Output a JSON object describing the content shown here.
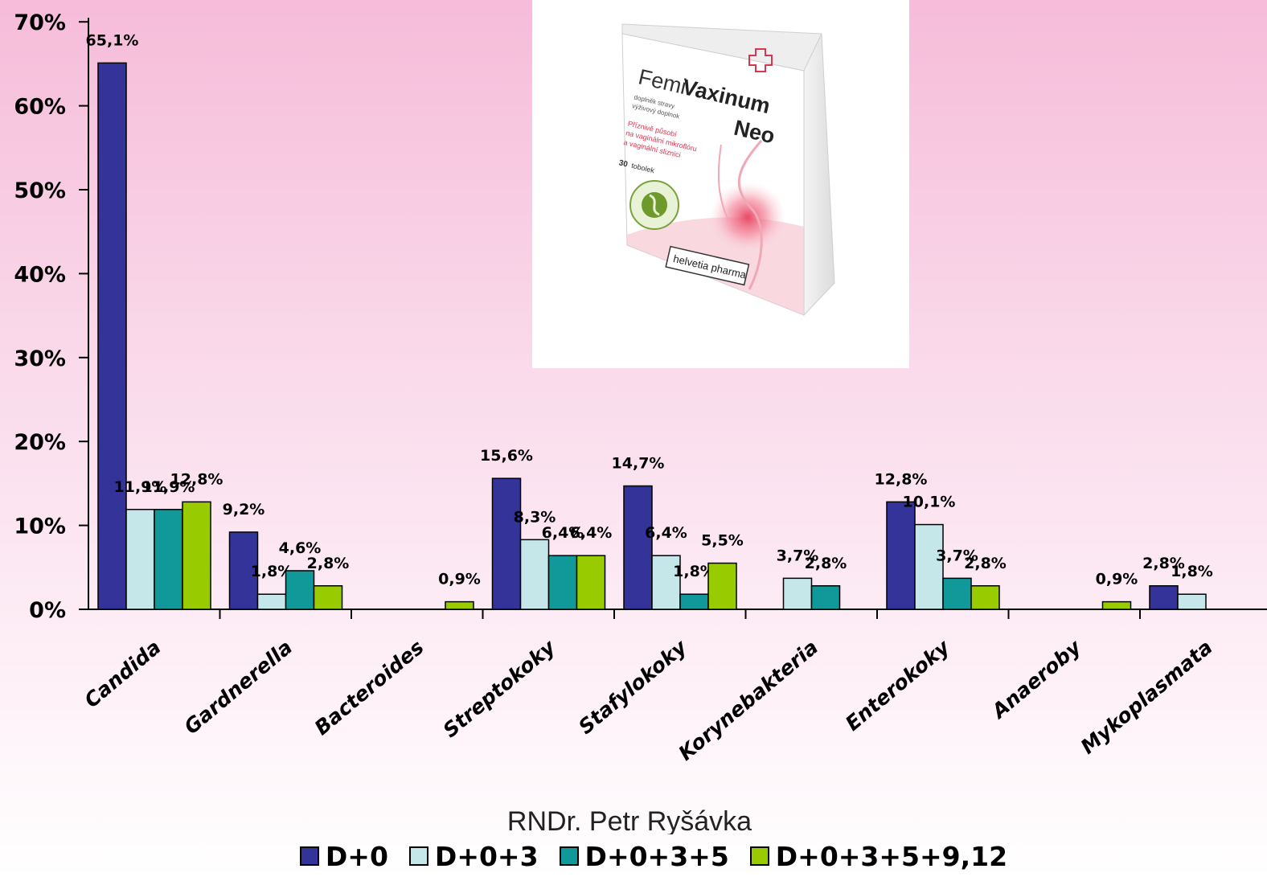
{
  "colors": {
    "series": [
      "#333399",
      "#c6e7ea",
      "#119898",
      "#99cc00"
    ]
  },
  "product_image": {
    "brand_prefix": "Femi",
    "brand_main": "Vaxinum",
    "brand_sub": "Neo",
    "line1": "doplněk stravy",
    "line2": "výživový doplnok",
    "claim1": "Příznivě působí",
    "claim2": "na vaginální mikroflóru",
    "claim3": "a vaginální sliznici",
    "count_number": "30",
    "count_word": "tobolek",
    "manufacturer": "helvetia pharma"
  },
  "credit": "RNDr. Petr Ryšávka",
  "chart_data": {
    "type": "bar",
    "categories": [
      "Candida",
      "Gardnerella",
      "Bacteroides",
      "Streptokoky",
      "Stafylokoky",
      "Korynebakteria",
      "Enterokoky",
      "Anaeroby",
      "Mykoplasmata"
    ],
    "series": [
      {
        "name": "D+0",
        "values": [
          65.1,
          9.2,
          null,
          15.6,
          14.7,
          null,
          12.8,
          null,
          2.8
        ],
        "labels": [
          "65,1%",
          "9,2%",
          "",
          "15,6%",
          "14,7%",
          "",
          "12,8%",
          "",
          "2,8%"
        ]
      },
      {
        "name": "D+0+3",
        "values": [
          11.9,
          1.8,
          null,
          8.3,
          6.4,
          3.7,
          10.1,
          null,
          1.8
        ],
        "labels": [
          "11,9%",
          "1,8%",
          "",
          "8,3%",
          "6,4%",
          "3,7%",
          "10,1%",
          "",
          "1,8%"
        ]
      },
      {
        "name": "D+0+3+5",
        "values": [
          11.9,
          4.6,
          null,
          6.4,
          1.8,
          2.8,
          3.7,
          null,
          null
        ],
        "labels": [
          "11,9%",
          "4,6%",
          "",
          "6,4%",
          "1,8%",
          "2,8%",
          "3,7%",
          "",
          ""
        ]
      },
      {
        "name": "D+0+3+5+9,12",
        "values": [
          12.8,
          2.8,
          0.9,
          6.4,
          5.5,
          null,
          2.8,
          0.9,
          null
        ],
        "labels": [
          "12,8%",
          "2,8%",
          "0,9%",
          "6,4%",
          "5,5%",
          "",
          "2,8%",
          "0,9%",
          ""
        ]
      }
    ],
    "ylim": [
      0,
      70
    ],
    "yticks": [
      "0%",
      "10%",
      "20%",
      "30%",
      "40%",
      "50%",
      "60%",
      "70%"
    ],
    "legend_position": "bottom",
    "grid": false
  }
}
